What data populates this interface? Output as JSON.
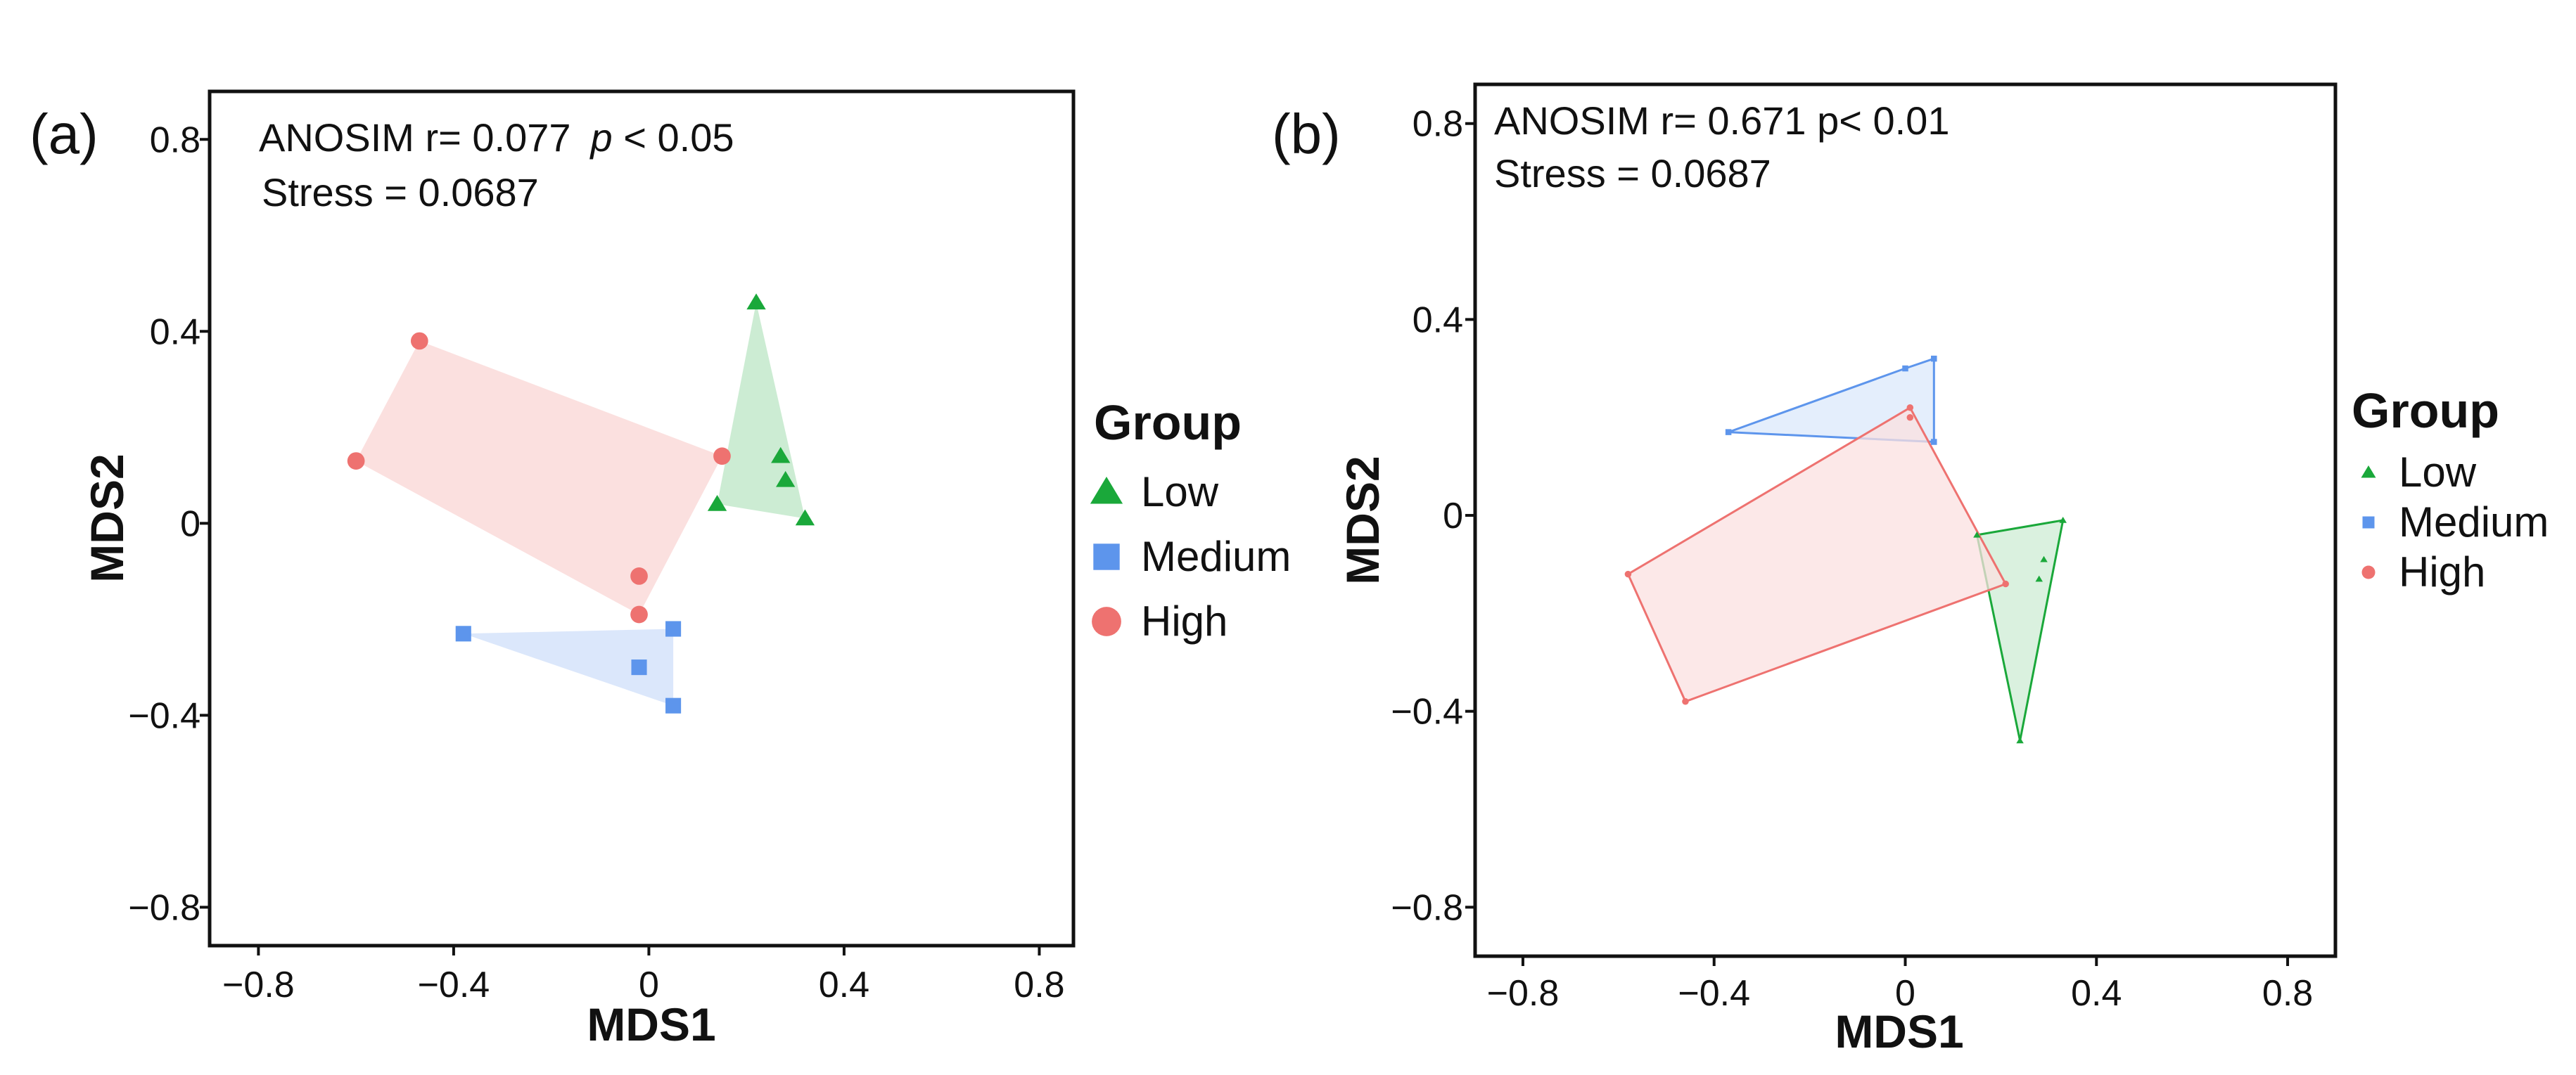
{
  "chart_data": [
    {
      "type": "scatter",
      "panel_label": "(a)",
      "annotation": {
        "line1": "ANOSIM   r= 0.077",
        "p_symbol": "p",
        "p_rest": " < 0.05",
        "line2": "Stress = 0.0687"
      },
      "xlabel": "MDS1",
      "ylabel": "MDS2",
      "xlim": [
        -0.9,
        0.87
      ],
      "ylim": [
        -0.88,
        0.9
      ],
      "xticks": [
        "−0.8",
        "−0.4",
        "0",
        "0.4",
        "0.8"
      ],
      "yticks": [
        "0.8",
        "0.4",
        "0",
        "−0.4",
        "−0.8"
      ],
      "x_tick_values": [
        -0.8,
        -0.4,
        0,
        0.4,
        0.8
      ],
      "y_tick_values": [
        0.8,
        0.4,
        0,
        -0.4,
        -0.8
      ],
      "hull_style": "filled",
      "legend": {
        "title": "Group",
        "placement": "right",
        "marker_size": "large"
      },
      "series": [
        {
          "name": "Low",
          "marker": "triangle",
          "color": "#1aa83a",
          "points": [
            [
              0.22,
              0.46
            ],
            [
              0.27,
              0.14
            ],
            [
              0.28,
              0.09
            ],
            [
              0.14,
              0.04
            ],
            [
              0.32,
              0.01
            ]
          ],
          "hull": [
            [
              0.22,
              0.46
            ],
            [
              0.32,
              0.01
            ],
            [
              0.14,
              0.04
            ]
          ]
        },
        {
          "name": "Medium",
          "marker": "square",
          "color": "#5d95ec",
          "points": [
            [
              -0.38,
              -0.23
            ],
            [
              0.05,
              -0.22
            ],
            [
              -0.02,
              -0.3
            ],
            [
              0.05,
              -0.38
            ]
          ],
          "hull": [
            [
              -0.38,
              -0.23
            ],
            [
              0.05,
              -0.22
            ],
            [
              0.05,
              -0.38
            ]
          ]
        },
        {
          "name": "High",
          "marker": "circle",
          "color": "#ee7270",
          "points": [
            [
              -0.47,
              0.38
            ],
            [
              -0.6,
              0.13
            ],
            [
              0.15,
              0.14
            ],
            [
              -0.02,
              -0.11
            ],
            [
              -0.02,
              -0.19
            ]
          ],
          "hull": [
            [
              -0.47,
              0.38
            ],
            [
              0.15,
              0.14
            ],
            [
              -0.02,
              -0.19
            ],
            [
              -0.6,
              0.13
            ]
          ]
        }
      ]
    },
    {
      "type": "scatter",
      "panel_label": "(b)",
      "annotation": {
        "line1": "ANOSIM   r= 0.671    p< 0.01",
        "p_symbol": "",
        "p_rest": "",
        "line2": "Stress = 0.0687"
      },
      "xlabel": "MDS1",
      "ylabel": "MDS2",
      "xlim": [
        -0.9,
        0.9
      ],
      "ylim": [
        -0.9,
        0.88
      ],
      "xticks": [
        "−0.8",
        "−0.4",
        "0",
        "0.4",
        "0.8"
      ],
      "yticks": [
        "0.8",
        "0.4",
        "0",
        "−0.4",
        "−0.8"
      ],
      "x_tick_values": [
        -0.8,
        -0.4,
        0,
        0.4,
        0.8
      ],
      "y_tick_values": [
        0.8,
        0.4,
        0,
        -0.4,
        -0.8
      ],
      "hull_style": "outlined",
      "legend": {
        "title": "Group",
        "placement": "right",
        "marker_size": "small"
      },
      "series": [
        {
          "name": "Low",
          "marker": "triangle",
          "color": "#1aa83a",
          "points": [
            [
              0.15,
              -0.04
            ],
            [
              0.33,
              -0.01
            ],
            [
              0.29,
              -0.09
            ],
            [
              0.28,
              -0.13
            ],
            [
              0.24,
              -0.46
            ]
          ],
          "hull": [
            [
              0.15,
              -0.04
            ],
            [
              0.33,
              -0.01
            ],
            [
              0.24,
              -0.46
            ]
          ]
        },
        {
          "name": "Medium",
          "marker": "square",
          "color": "#5d95ec",
          "points": [
            [
              -0.37,
              0.17
            ],
            [
              0.0,
              0.3
            ],
            [
              0.06,
              0.32
            ],
            [
              0.06,
              0.15
            ]
          ],
          "hull": [
            [
              -0.37,
              0.17
            ],
            [
              0.0,
              0.3
            ],
            [
              0.06,
              0.32
            ],
            [
              0.06,
              0.15
            ]
          ]
        },
        {
          "name": "High",
          "marker": "circle",
          "color": "#ee7270",
          "points": [
            [
              0.01,
              0.22
            ],
            [
              0.01,
              0.2
            ],
            [
              -0.58,
              -0.12
            ],
            [
              -0.46,
              -0.38
            ],
            [
              0.21,
              -0.14
            ]
          ],
          "hull": [
            [
              0.01,
              0.22
            ],
            [
              0.21,
              -0.14
            ],
            [
              -0.46,
              -0.38
            ],
            [
              -0.58,
              -0.12
            ]
          ]
        }
      ]
    }
  ]
}
